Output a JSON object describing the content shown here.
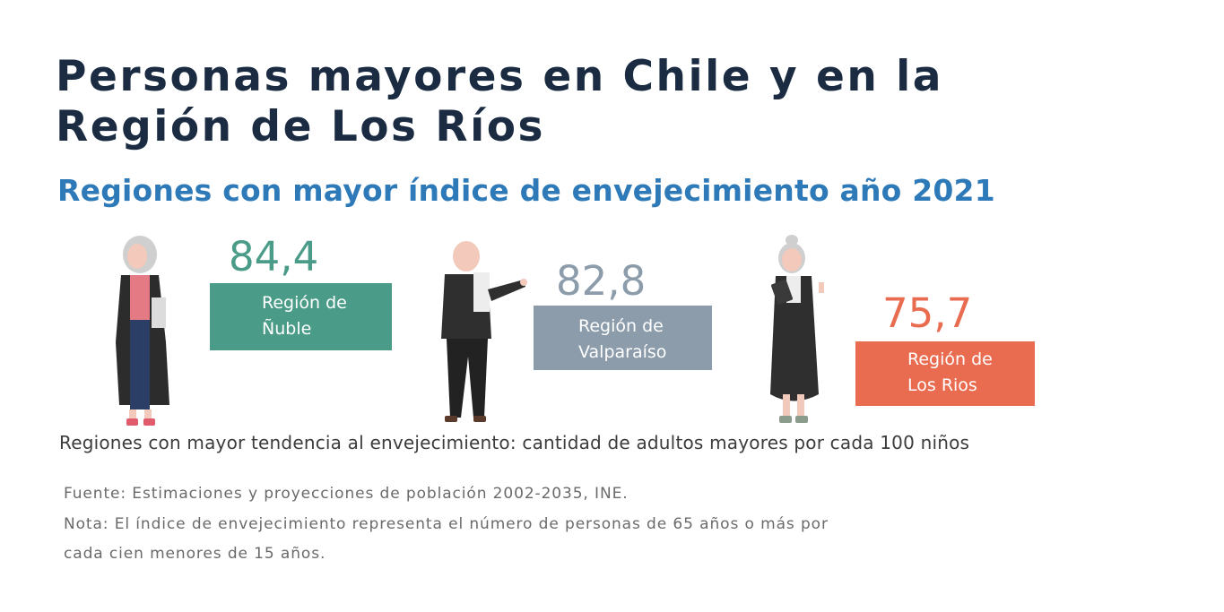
{
  "title": {
    "line1": "Personas mayores en Chile y en la",
    "line2": "Región  de Los Ríos"
  },
  "subtitle": "Regiones con mayor índice de envejecimiento año 2021",
  "regions": [
    {
      "value": "84,4",
      "label_line1": "Región de",
      "label_line2": "Ñuble",
      "color": "#4a9c88"
    },
    {
      "value": "82,8",
      "label_line1": "Región de",
      "label_line2": "Valparaíso",
      "color": "#8c9cab"
    },
    {
      "value": "75,7",
      "label_line1": "Región de",
      "label_line2": "Los Rios",
      "color": "#e96b50"
    }
  ],
  "figures": [
    "elderly-woman-illustration",
    "elderly-man-illustration",
    "elderly-woman-with-tablet-illustration"
  ],
  "caption": "Regiones con mayor tendencia al envejecimiento: cantidad de adultos mayores por cada 100 niños",
  "source": "Fuente: Estimaciones  y proyecciones de población 2002-2035, INE.",
  "note_line1": "Nota: El índice de envejecimiento representa el número de personas de 65 años o más por",
  "note_line2": "cada cien menores de 15 años."
}
